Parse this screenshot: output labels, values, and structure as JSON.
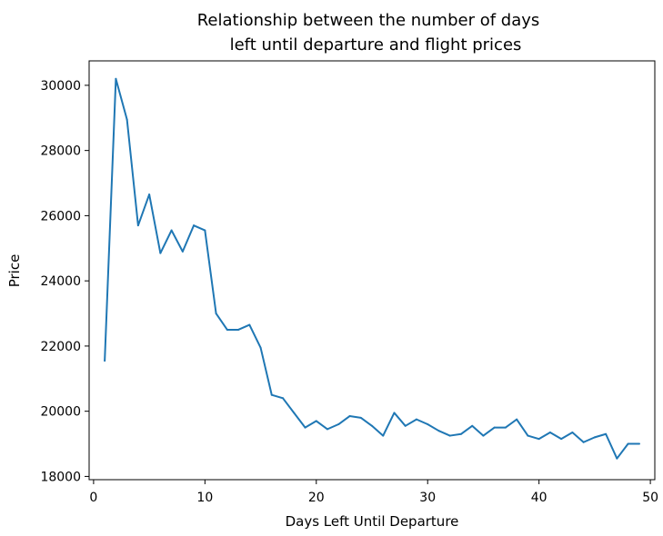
{
  "chart_data": {
    "type": "line",
    "title_lines": [
      "Relationship between the number of days",
      "left until departure and flight prices"
    ],
    "xlabel": "Days Left Until Departure",
    "ylabel": "Price",
    "xlim": [
      -0.4,
      50.4
    ],
    "ylim": [
      17900,
      30750
    ],
    "xticks": [
      0,
      10,
      20,
      30,
      40,
      50
    ],
    "yticks": [
      18000,
      20000,
      22000,
      24000,
      26000,
      28000,
      30000
    ],
    "grid": false,
    "series": [
      {
        "color": "#1f77b4",
        "x": [
          1,
          2,
          3,
          4,
          5,
          6,
          7,
          8,
          9,
          10,
          11,
          12,
          13,
          14,
          15,
          16,
          17,
          18,
          19,
          20,
          21,
          22,
          23,
          24,
          25,
          26,
          27,
          28,
          29,
          30,
          31,
          32,
          33,
          34,
          35,
          36,
          37,
          38,
          39,
          40,
          41,
          42,
          43,
          44,
          45,
          46,
          47,
          48,
          49
        ],
        "y": [
          21550,
          30200,
          28950,
          25700,
          26650,
          24850,
          25550,
          24900,
          25700,
          25550,
          23000,
          22500,
          22500,
          22650,
          21950,
          20500,
          20400,
          19950,
          19500,
          19700,
          19450,
          19600,
          19850,
          19800,
          19550,
          19250,
          19950,
          19550,
          19750,
          19600,
          19400,
          19250,
          19300,
          19550,
          19250,
          19500,
          19500,
          19750,
          19250,
          19150,
          19350,
          19150,
          19350,
          19050,
          19200,
          19300,
          18550,
          19000,
          19000
        ]
      }
    ]
  }
}
